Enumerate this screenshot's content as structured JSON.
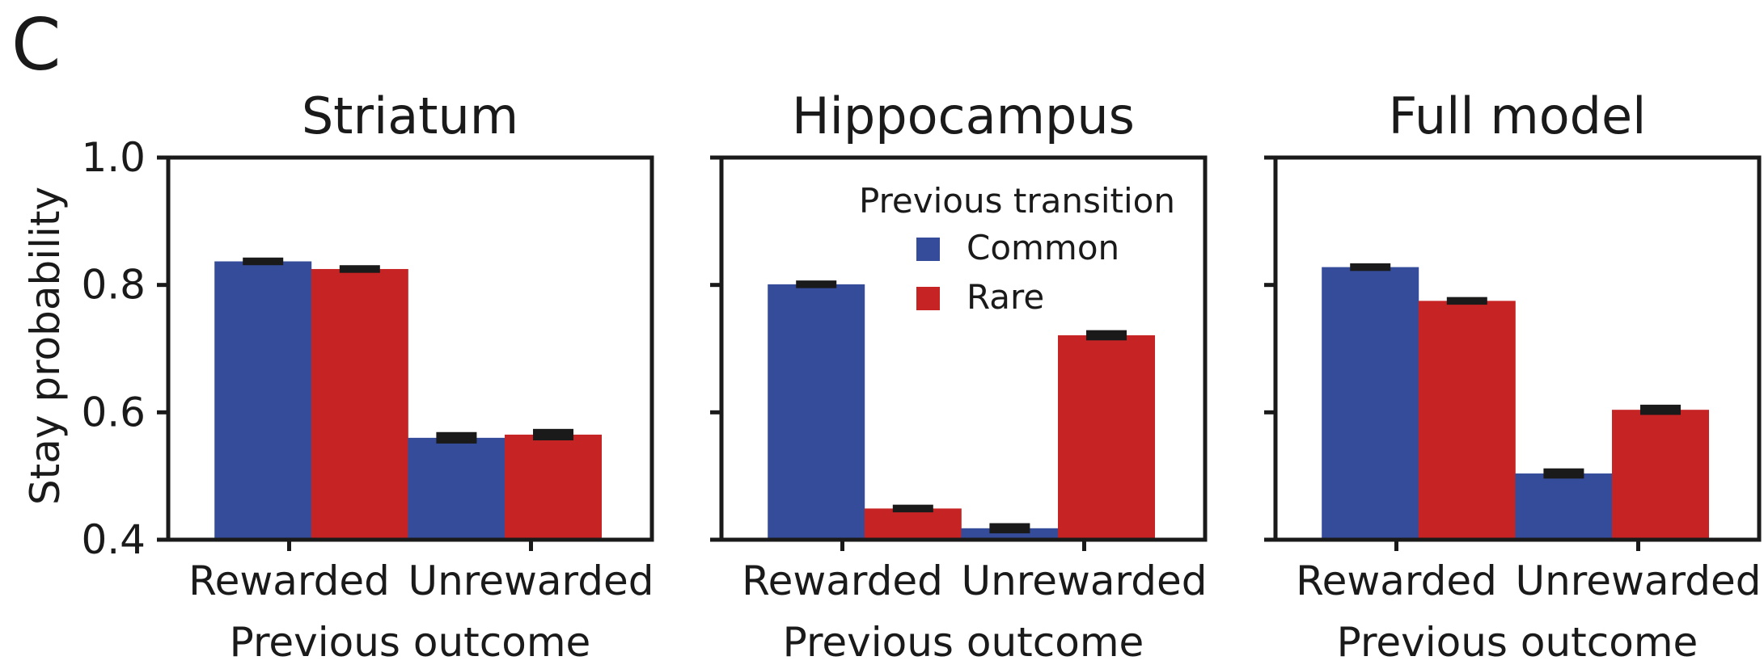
{
  "figure": {
    "panel_letter": "C",
    "ylabel": "Stay probability",
    "xlabel": "Previous outcome",
    "legend": {
      "title": "Previous transition",
      "entries": [
        {
          "name": "Common",
          "color": "#354c9b"
        },
        {
          "name": "Rare",
          "color": "#c62424"
        }
      ]
    }
  },
  "chart_data": [
    {
      "type": "bar",
      "title": "Striatum",
      "categories": [
        "Rewarded",
        "Unrewarded"
      ],
      "series": [
        {
          "name": "Common",
          "color": "#354c9b",
          "values": [
            0.837,
            0.56
          ],
          "errors": [
            0.006,
            0.009
          ]
        },
        {
          "name": "Rare",
          "color": "#c62424",
          "values": [
            0.825,
            0.565
          ],
          "errors": [
            0.006,
            0.009
          ]
        }
      ],
      "xlabel": "Previous outcome",
      "ylabel": "Stay probability",
      "ylim": [
        0.4,
        1.0
      ],
      "yticks": [
        "0.4",
        "0.6",
        "0.8",
        "1.0"
      ],
      "grid": false,
      "legend": false
    },
    {
      "type": "bar",
      "title": "Hippocampus",
      "categories": [
        "Rewarded",
        "Unrewarded"
      ],
      "series": [
        {
          "name": "Common",
          "color": "#354c9b",
          "values": [
            0.801,
            0.418
          ],
          "errors": [
            0.006,
            0.008
          ]
        },
        {
          "name": "Rare",
          "color": "#c62424",
          "values": [
            0.449,
            0.721
          ],
          "errors": [
            0.006,
            0.008
          ]
        }
      ],
      "xlabel": "Previous outcome",
      "ylim": [
        0.4,
        1.0
      ],
      "grid": false,
      "legend": "top-right"
    },
    {
      "type": "bar",
      "title": "Full model",
      "categories": [
        "Rewarded",
        "Unrewarded"
      ],
      "series": [
        {
          "name": "Common",
          "color": "#354c9b",
          "values": [
            0.828,
            0.504
          ],
          "errors": [
            0.006,
            0.008
          ]
        },
        {
          "name": "Rare",
          "color": "#c62424",
          "values": [
            0.775,
            0.604
          ],
          "errors": [
            0.006,
            0.008
          ]
        }
      ],
      "xlabel": "Previous outcome",
      "ylim": [
        0.4,
        1.0
      ],
      "grid": false,
      "legend": false
    }
  ]
}
